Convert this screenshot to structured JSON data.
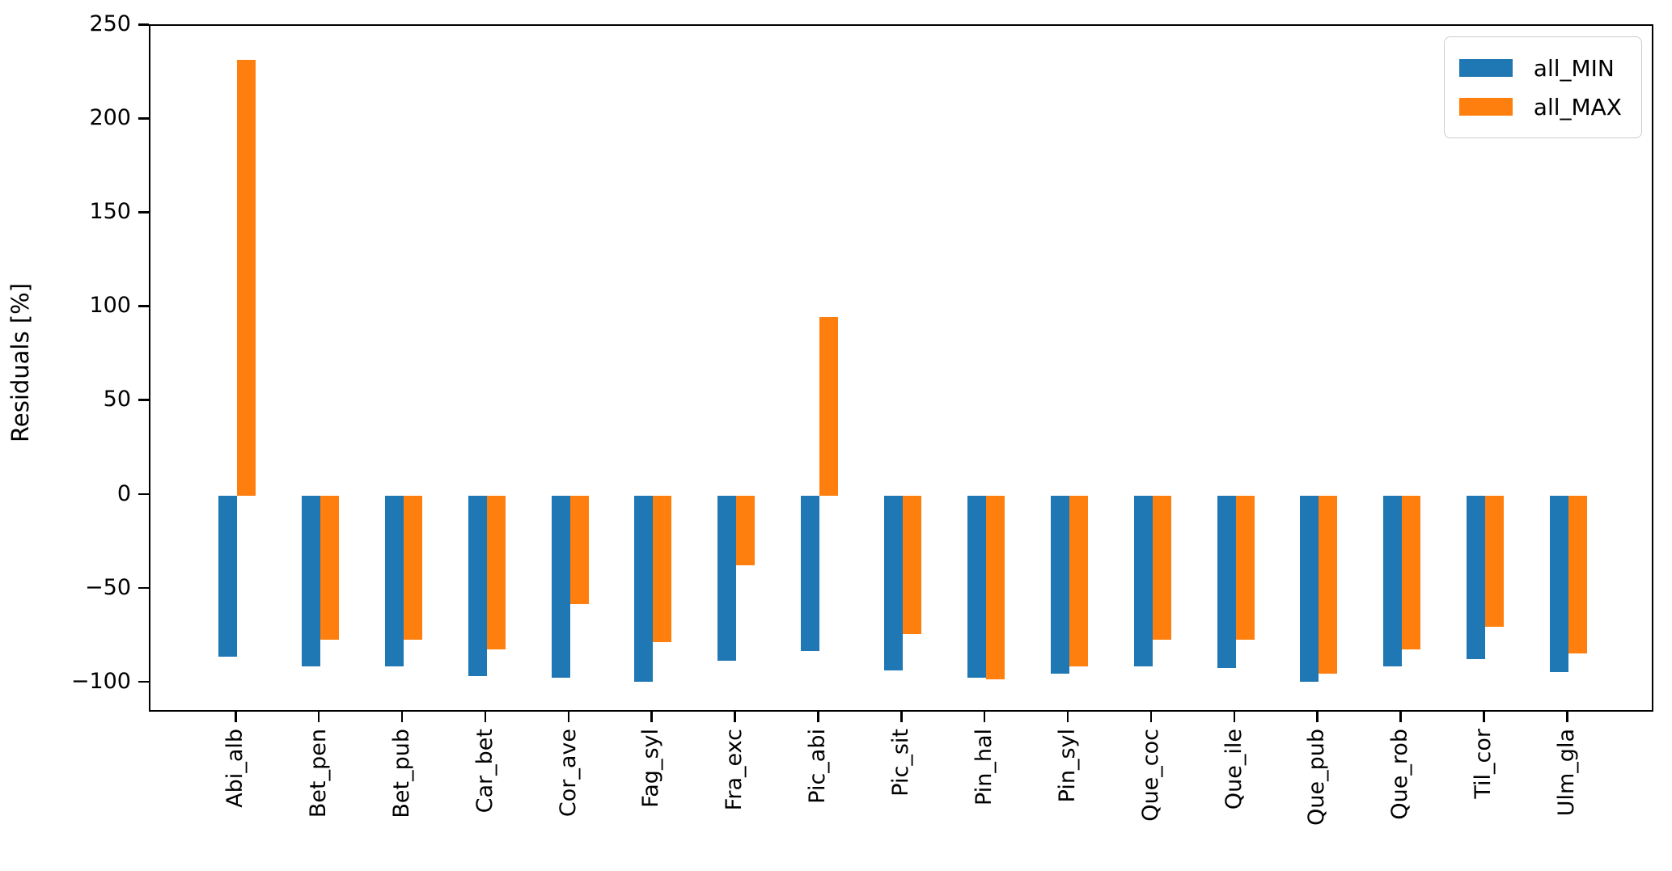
{
  "chart_data": {
    "type": "bar",
    "title": "",
    "xlabel": "",
    "ylabel": "Residuals [%]",
    "categories": [
      "Abi_alb",
      "Bet_pen",
      "Bet_pub",
      "Car_bet",
      "Cor_ave",
      "Fag_syl",
      "Fra_exc",
      "Pic_abi",
      "Pic_sit",
      "Pin_hal",
      "Pin_syl",
      "Que_coc",
      "Que_ile",
      "Que_pub",
      "Que_rob",
      "Til_cor",
      "Ulm_gla"
    ],
    "series": [
      {
        "name": "all_MIN",
        "color": "#1f77b4",
        "values": [
          -86,
          -91,
          -91,
          -96,
          -97,
          -99,
          -88,
          -83,
          -93,
          -97,
          -95,
          -91,
          -92,
          -99,
          -91,
          -87,
          -94
        ]
      },
      {
        "name": "all_MAX",
        "color": "#ff7f0e",
        "values": [
          232,
          -77,
          -77,
          -82,
          -58,
          -78,
          -37,
          95,
          -74,
          -98,
          -91,
          -77,
          -77,
          -95,
          -82,
          -70,
          -84
        ]
      }
    ],
    "ylim": [
      -116,
      250
    ],
    "yticks": [
      250,
      200,
      150,
      100,
      50,
      0,
      -50,
      -100
    ],
    "ytick_labels": [
      "250",
      "200",
      "150",
      "100",
      "50",
      "0",
      "−50",
      "−100"
    ],
    "grid": false,
    "legend_position": "upper right"
  }
}
